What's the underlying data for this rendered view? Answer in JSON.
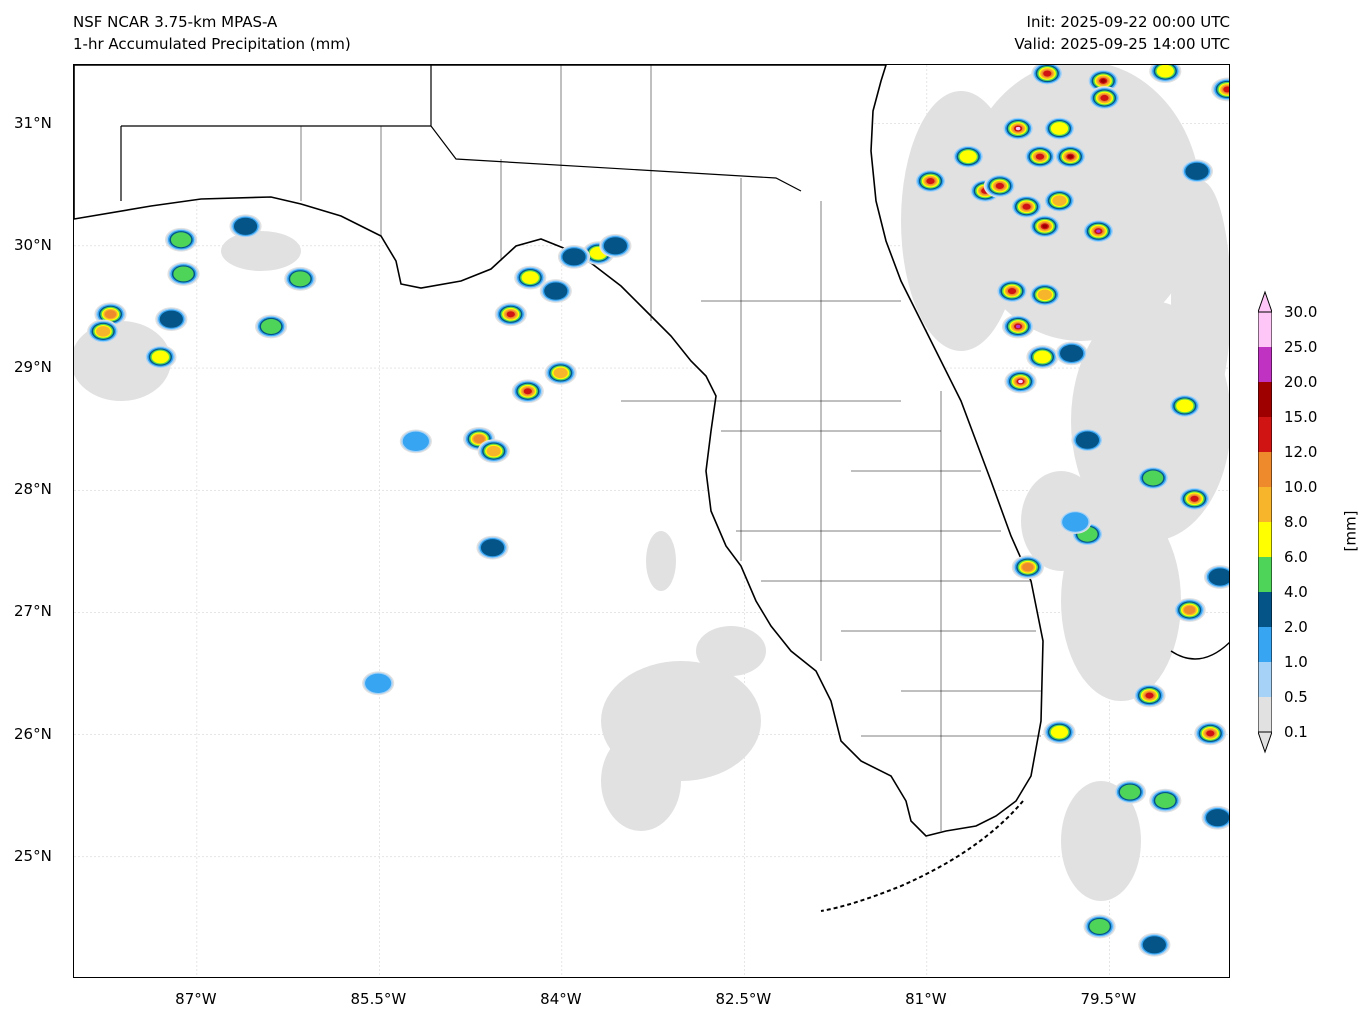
{
  "header": {
    "model": "NSF NCAR 3.75-km MPAS-A",
    "field": "1-hr Accumulated Precipitation (mm)",
    "init": "Init: 2025-09-22 00:00 UTC",
    "valid": "Valid: 2025-09-25 14:00 UTC"
  },
  "axes": {
    "lon_range": [
      -88.01,
      -78.5
    ],
    "lat_range": [
      24.0,
      31.48
    ],
    "x_ticks": [
      {
        "value": -87,
        "label": "87°W"
      },
      {
        "value": -85.5,
        "label": "85.5°W"
      },
      {
        "value": -84,
        "label": "84°W"
      },
      {
        "value": -82.5,
        "label": "82.5°W"
      },
      {
        "value": -81,
        "label": "81°W"
      },
      {
        "value": -79.5,
        "label": "79.5°W"
      }
    ],
    "y_ticks": [
      {
        "value": 31,
        "label": "31°N"
      },
      {
        "value": 30,
        "label": "30°N"
      },
      {
        "value": 29,
        "label": "29°N"
      },
      {
        "value": 28,
        "label": "28°N"
      },
      {
        "value": 27,
        "label": "27°N"
      },
      {
        "value": 26,
        "label": "26°N"
      },
      {
        "value": 25,
        "label": "25°N"
      }
    ]
  },
  "colorbar": {
    "units": "[mm]",
    "levels": [
      "0.1",
      "0.5",
      "1.0",
      "2.0",
      "4.0",
      "6.0",
      "8.0",
      "10.0",
      "12.0",
      "15.0",
      "20.0",
      "25.0",
      "30.0"
    ],
    "thresholds": [
      0.1,
      0.5,
      1,
      2,
      4,
      6,
      8,
      10,
      12,
      15,
      20,
      25,
      30
    ],
    "colors": [
      "#e1e1e1",
      "#a6d2f7",
      "#37a5f2",
      "#055487",
      "#4fd45a",
      "#ffff00",
      "#f7b52c",
      "#ef8a2c",
      "#d01414",
      "#9e0000",
      "#c032c2",
      "#fdc6f6"
    ]
  },
  "chart_data": {
    "type": "heatmap",
    "title": "1-hr Accumulated Precipitation (mm)",
    "cells": [
      {
        "lon": -87.71,
        "lat": 29.44,
        "max": 12
      },
      {
        "lon": -87.77,
        "lat": 29.3,
        "max": 10
      },
      {
        "lon": -87.13,
        "lat": 30.05,
        "max": 6
      },
      {
        "lon": -87.11,
        "lat": 29.77,
        "max": 6
      },
      {
        "lon": -87.3,
        "lat": 29.09,
        "max": 8
      },
      {
        "lon": -86.39,
        "lat": 29.34,
        "max": 6
      },
      {
        "lon": -86.15,
        "lat": 29.73,
        "max": 6
      },
      {
        "lon": -86.6,
        "lat": 30.16,
        "max": 4
      },
      {
        "lon": -87.21,
        "lat": 29.4,
        "max": 4
      },
      {
        "lon": -84.42,
        "lat": 29.44,
        "max": 15
      },
      {
        "lon": -84.26,
        "lat": 29.74,
        "max": 8
      },
      {
        "lon": -84.05,
        "lat": 29.63,
        "max": 4
      },
      {
        "lon": -84.01,
        "lat": 28.96,
        "max": 10
      },
      {
        "lon": -84.28,
        "lat": 28.81,
        "max": 15
      },
      {
        "lon": -84.68,
        "lat": 28.42,
        "max": 12
      },
      {
        "lon": -84.56,
        "lat": 28.32,
        "max": 10
      },
      {
        "lon": -85.2,
        "lat": 28.4,
        "max": 2
      },
      {
        "lon": -84.57,
        "lat": 27.53,
        "max": 4
      },
      {
        "lon": -85.51,
        "lat": 26.42,
        "max": 2
      },
      {
        "lon": -83.7,
        "lat": 29.94,
        "max": 8
      },
      {
        "lon": -83.56,
        "lat": 30.0,
        "max": 4
      },
      {
        "lon": -83.9,
        "lat": 29.91,
        "max": 4
      },
      {
        "lon": -80.97,
        "lat": 30.53,
        "max": 15
      },
      {
        "lon": -80.66,
        "lat": 30.73,
        "max": 8
      },
      {
        "lon": -80.52,
        "lat": 30.45,
        "max": 15
      },
      {
        "lon": -80.4,
        "lat": 30.49,
        "max": 15
      },
      {
        "lon": -80.01,
        "lat": 31.41,
        "max": 15
      },
      {
        "lon": -79.55,
        "lat": 31.35,
        "max": 20
      },
      {
        "lon": -79.54,
        "lat": 31.21,
        "max": 15
      },
      {
        "lon": -80.25,
        "lat": 30.96,
        "max": 30
      },
      {
        "lon": -80.07,
        "lat": 30.73,
        "max": 15
      },
      {
        "lon": -79.82,
        "lat": 30.73,
        "max": 20
      },
      {
        "lon": -79.91,
        "lat": 30.96,
        "max": 8
      },
      {
        "lon": -80.03,
        "lat": 30.16,
        "max": 20
      },
      {
        "lon": -80.18,
        "lat": 30.32,
        "max": 15
      },
      {
        "lon": -79.59,
        "lat": 30.12,
        "max": 25
      },
      {
        "lon": -79.91,
        "lat": 30.37,
        "max": 10
      },
      {
        "lon": -80.3,
        "lat": 29.63,
        "max": 15
      },
      {
        "lon": -80.03,
        "lat": 29.6,
        "max": 10
      },
      {
        "lon": -80.25,
        "lat": 29.34,
        "max": 25
      },
      {
        "lon": -80.23,
        "lat": 28.89,
        "max": 30
      },
      {
        "lon": -80.05,
        "lat": 29.09,
        "max": 8
      },
      {
        "lon": -79.81,
        "lat": 29.12,
        "max": 4
      },
      {
        "lon": -78.88,
        "lat": 28.69,
        "max": 8
      },
      {
        "lon": -79.68,
        "lat": 28.41,
        "max": 4
      },
      {
        "lon": -78.8,
        "lat": 27.93,
        "max": 15
      },
      {
        "lon": -79.14,
        "lat": 28.1,
        "max": 6
      },
      {
        "lon": -79.68,
        "lat": 27.64,
        "max": 6
      },
      {
        "lon": -80.17,
        "lat": 27.37,
        "max": 12
      },
      {
        "lon": -78.84,
        "lat": 27.02,
        "max": 12
      },
      {
        "lon": -79.17,
        "lat": 26.32,
        "max": 15
      },
      {
        "lon": -78.67,
        "lat": 26.01,
        "max": 15
      },
      {
        "lon": -79.91,
        "lat": 26.02,
        "max": 8
      },
      {
        "lon": -79.33,
        "lat": 25.53,
        "max": 6
      },
      {
        "lon": -79.04,
        "lat": 25.46,
        "max": 6
      },
      {
        "lon": -79.58,
        "lat": 24.43,
        "max": 6
      },
      {
        "lon": -79.13,
        "lat": 24.28,
        "max": 4
      },
      {
        "lon": -78.53,
        "lat": 31.28,
        "max": 15
      },
      {
        "lon": -78.78,
        "lat": 30.61,
        "max": 4
      },
      {
        "lon": -79.04,
        "lat": 31.43,
        "max": 8
      },
      {
        "lon": -78.59,
        "lat": 27.29,
        "max": 4
      },
      {
        "lon": -79.78,
        "lat": 27.74,
        "max": 2
      },
      {
        "lon": -78.61,
        "lat": 25.32,
        "max": 4
      }
    ]
  }
}
